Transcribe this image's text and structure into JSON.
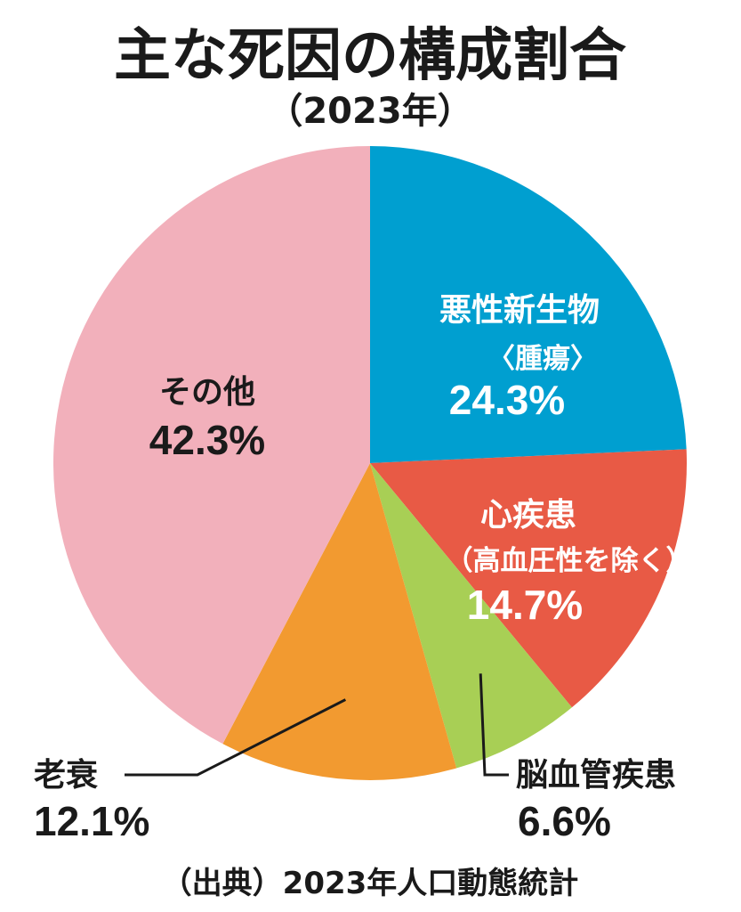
{
  "chart_data": {
    "type": "pie",
    "title": "主な死因の構成割合",
    "subtitle": "（2023年）",
    "slices": [
      {
        "label": "悪性新生物",
        "sublabel": "〈腫瘍〉",
        "value": 24.3,
        "display": "24.3%",
        "color": "#009fd0"
      },
      {
        "label": "心疾患",
        "sublabel": "（高血圧性を除く）",
        "value": 14.7,
        "display": "14.7%",
        "color": "#e85a45"
      },
      {
        "label": "脳血管疾患",
        "sublabel": "",
        "value": 6.6,
        "display": "6.6%",
        "color": "#a8cf55"
      },
      {
        "label": "老衰",
        "sublabel": "",
        "value": 12.1,
        "display": "12.1%",
        "color": "#f29a30"
      },
      {
        "label": "その他",
        "sublabel": "",
        "value": 42.3,
        "display": "42.3%",
        "color": "#f2b0bb"
      }
    ],
    "source": "（出典）2023年人口動態統計"
  }
}
